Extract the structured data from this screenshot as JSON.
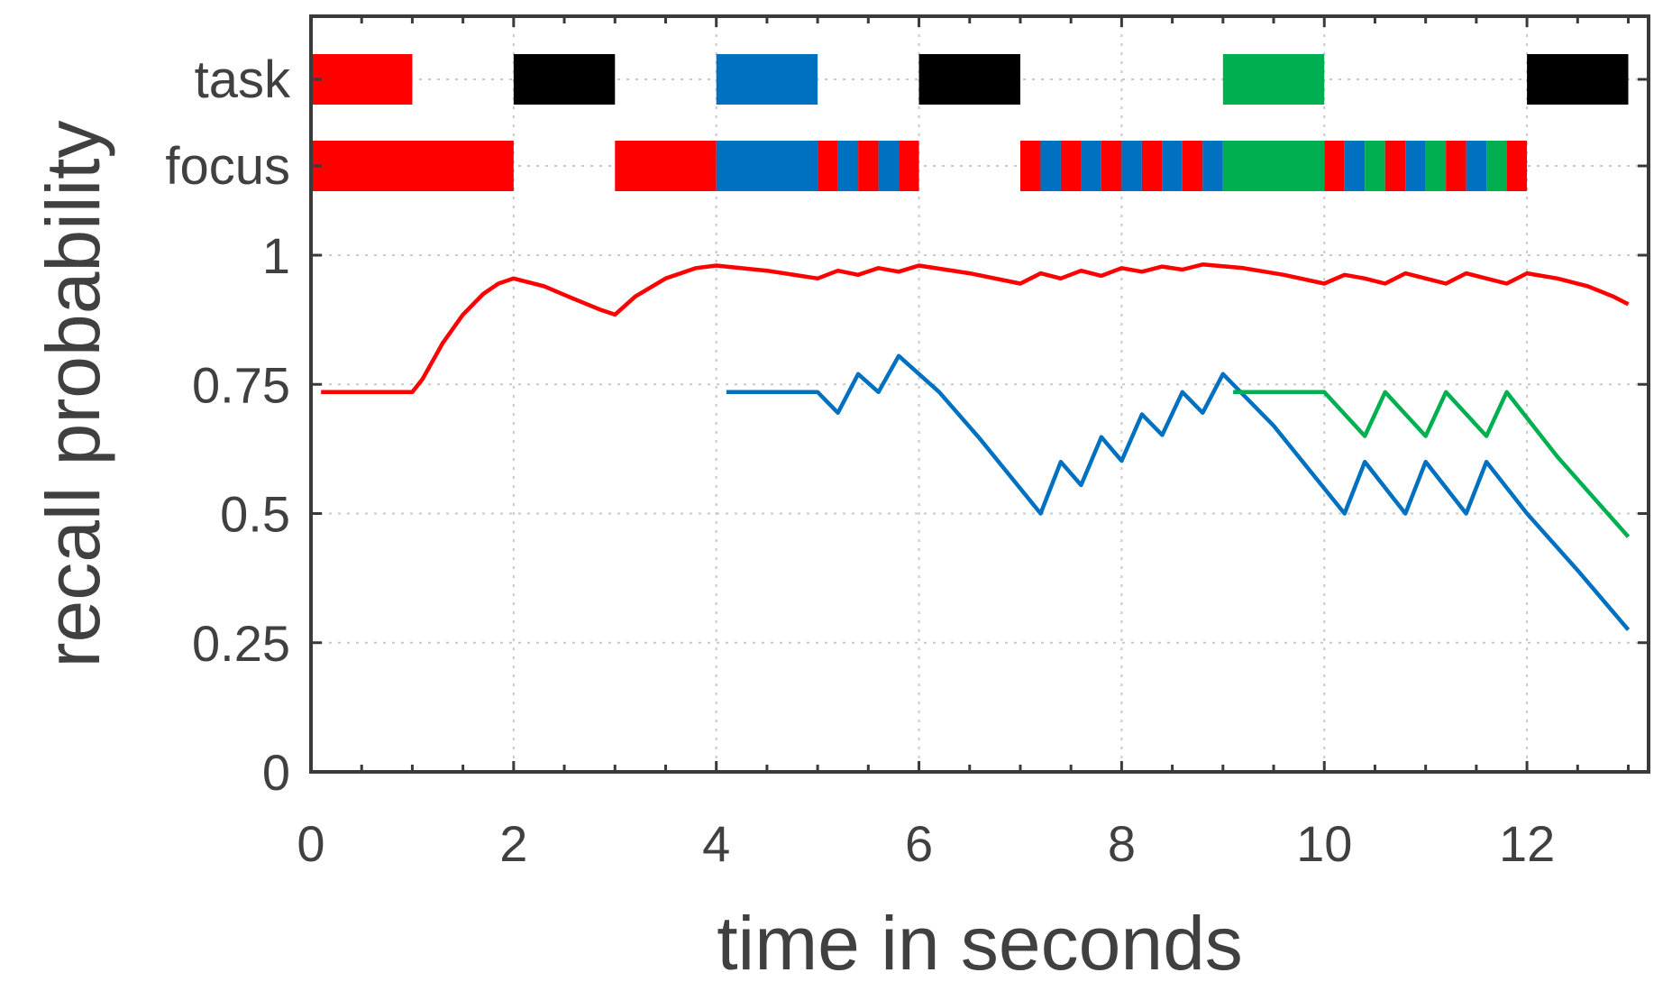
{
  "chart_data": {
    "type": "line",
    "title": "",
    "xlabel": "time in seconds",
    "ylabel": "recall probability",
    "xlim": [
      0,
      13.2
    ],
    "ylim": [
      0,
      1
    ],
    "xticks": [
      0,
      2,
      4,
      6,
      8,
      10,
      12
    ],
    "xtick_labels": [
      "0",
      "2",
      "4",
      "6",
      "8",
      "10",
      "12"
    ],
    "yticks": [
      0,
      0.25,
      0.5,
      0.75,
      1
    ],
    "ytick_labels": [
      "0",
      "0.25",
      "0.5",
      "0.75",
      "1"
    ],
    "grid": true,
    "colors": {
      "red": "#ff0000",
      "blue": "#0070c0",
      "green": "#00b050",
      "black": "#000000"
    },
    "series": [
      {
        "color": "#ff0000",
        "points": [
          [
            0.1,
            0.735
          ],
          [
            1.0,
            0.735
          ],
          [
            1.1,
            0.76
          ],
          [
            1.3,
            0.83
          ],
          [
            1.5,
            0.885
          ],
          [
            1.7,
            0.925
          ],
          [
            1.85,
            0.945
          ],
          [
            2.0,
            0.955
          ],
          [
            2.3,
            0.94
          ],
          [
            2.6,
            0.915
          ],
          [
            2.85,
            0.895
          ],
          [
            3.0,
            0.885
          ],
          [
            3.2,
            0.92
          ],
          [
            3.5,
            0.955
          ],
          [
            3.8,
            0.975
          ],
          [
            4.0,
            0.98
          ],
          [
            4.5,
            0.97
          ],
          [
            5.0,
            0.955
          ],
          [
            5.2,
            0.97
          ],
          [
            5.4,
            0.962
          ],
          [
            5.6,
            0.975
          ],
          [
            5.8,
            0.968
          ],
          [
            6.0,
            0.98
          ],
          [
            6.5,
            0.965
          ],
          [
            7.0,
            0.945
          ],
          [
            7.2,
            0.965
          ],
          [
            7.4,
            0.955
          ],
          [
            7.6,
            0.97
          ],
          [
            7.8,
            0.96
          ],
          [
            8.0,
            0.975
          ],
          [
            8.2,
            0.968
          ],
          [
            8.4,
            0.978
          ],
          [
            8.6,
            0.972
          ],
          [
            8.8,
            0.982
          ],
          [
            9.2,
            0.975
          ],
          [
            9.6,
            0.962
          ],
          [
            10.0,
            0.945
          ],
          [
            10.2,
            0.962
          ],
          [
            10.4,
            0.955
          ],
          [
            10.6,
            0.945
          ],
          [
            10.8,
            0.965
          ],
          [
            11.0,
            0.955
          ],
          [
            11.2,
            0.945
          ],
          [
            11.4,
            0.965
          ],
          [
            11.6,
            0.955
          ],
          [
            11.8,
            0.945
          ],
          [
            12.0,
            0.965
          ],
          [
            12.3,
            0.955
          ],
          [
            12.6,
            0.94
          ],
          [
            12.85,
            0.92
          ],
          [
            13.0,
            0.905
          ]
        ]
      },
      {
        "color": "#0070c0",
        "points": [
          [
            4.1,
            0.735
          ],
          [
            5.0,
            0.735
          ],
          [
            5.2,
            0.695
          ],
          [
            5.4,
            0.77
          ],
          [
            5.6,
            0.735
          ],
          [
            5.8,
            0.805
          ],
          [
            6.2,
            0.735
          ],
          [
            6.6,
            0.645
          ],
          [
            7.2,
            0.5
          ],
          [
            7.4,
            0.6
          ],
          [
            7.6,
            0.555
          ],
          [
            7.8,
            0.648
          ],
          [
            8.0,
            0.602
          ],
          [
            8.2,
            0.692
          ],
          [
            8.4,
            0.652
          ],
          [
            8.6,
            0.735
          ],
          [
            8.8,
            0.695
          ],
          [
            9.0,
            0.77
          ],
          [
            9.5,
            0.67
          ],
          [
            10.2,
            0.5
          ],
          [
            10.4,
            0.6
          ],
          [
            10.8,
            0.5
          ],
          [
            11.0,
            0.6
          ],
          [
            11.4,
            0.5
          ],
          [
            11.6,
            0.6
          ],
          [
            12.0,
            0.5
          ],
          [
            12.5,
            0.39
          ],
          [
            13.0,
            0.275
          ]
        ]
      },
      {
        "color": "#00b050",
        "points": [
          [
            9.1,
            0.735
          ],
          [
            10.0,
            0.735
          ],
          [
            10.4,
            0.65
          ],
          [
            10.6,
            0.735
          ],
          [
            11.0,
            0.65
          ],
          [
            11.2,
            0.735
          ],
          [
            11.6,
            0.65
          ],
          [
            11.8,
            0.735
          ],
          [
            12.3,
            0.61
          ],
          [
            13.0,
            0.455
          ]
        ]
      }
    ],
    "rows": [
      {
        "label": "task",
        "segments": [
          {
            "start": 0,
            "end": 1,
            "color": "#ff0000"
          },
          {
            "start": 2,
            "end": 3,
            "color": "#000000"
          },
          {
            "start": 4,
            "end": 5,
            "color": "#0070c0"
          },
          {
            "start": 6,
            "end": 7,
            "color": "#000000"
          },
          {
            "start": 9,
            "end": 10,
            "color": "#00b050"
          },
          {
            "start": 12,
            "end": 13,
            "color": "#000000"
          }
        ]
      },
      {
        "label": "focus",
        "segments": [
          {
            "start": 0,
            "end": 2,
            "color": "#ff0000"
          },
          {
            "start": 3,
            "end": 4,
            "color": "#ff0000"
          },
          {
            "start": 4,
            "end": 5,
            "color": "#0070c0"
          },
          {
            "start": 5.0,
            "end": 5.2,
            "color": "#ff0000"
          },
          {
            "start": 5.2,
            "end": 5.4,
            "color": "#0070c0"
          },
          {
            "start": 5.4,
            "end": 5.6,
            "color": "#ff0000"
          },
          {
            "start": 5.6,
            "end": 5.8,
            "color": "#0070c0"
          },
          {
            "start": 5.8,
            "end": 6.0,
            "color": "#ff0000"
          },
          {
            "start": 7.0,
            "end": 7.2,
            "color": "#ff0000"
          },
          {
            "start": 7.2,
            "end": 7.4,
            "color": "#0070c0"
          },
          {
            "start": 7.4,
            "end": 7.6,
            "color": "#ff0000"
          },
          {
            "start": 7.6,
            "end": 7.8,
            "color": "#0070c0"
          },
          {
            "start": 7.8,
            "end": 8.0,
            "color": "#ff0000"
          },
          {
            "start": 8.0,
            "end": 8.2,
            "color": "#0070c0"
          },
          {
            "start": 8.2,
            "end": 8.4,
            "color": "#ff0000"
          },
          {
            "start": 8.4,
            "end": 8.6,
            "color": "#0070c0"
          },
          {
            "start": 8.6,
            "end": 8.8,
            "color": "#ff0000"
          },
          {
            "start": 8.8,
            "end": 9.0,
            "color": "#0070c0"
          },
          {
            "start": 9.0,
            "end": 10.0,
            "color": "#00b050"
          },
          {
            "start": 10.0,
            "end": 10.2,
            "color": "#ff0000"
          },
          {
            "start": 10.2,
            "end": 10.4,
            "color": "#0070c0"
          },
          {
            "start": 10.4,
            "end": 10.6,
            "color": "#00b050"
          },
          {
            "start": 10.6,
            "end": 10.8,
            "color": "#ff0000"
          },
          {
            "start": 10.8,
            "end": 11.0,
            "color": "#0070c0"
          },
          {
            "start": 11.0,
            "end": 11.2,
            "color": "#00b050"
          },
          {
            "start": 11.2,
            "end": 11.4,
            "color": "#ff0000"
          },
          {
            "start": 11.4,
            "end": 11.6,
            "color": "#0070c0"
          },
          {
            "start": 11.6,
            "end": 11.8,
            "color": "#00b050"
          },
          {
            "start": 11.8,
            "end": 12.0,
            "color": "#ff0000"
          }
        ]
      }
    ]
  }
}
